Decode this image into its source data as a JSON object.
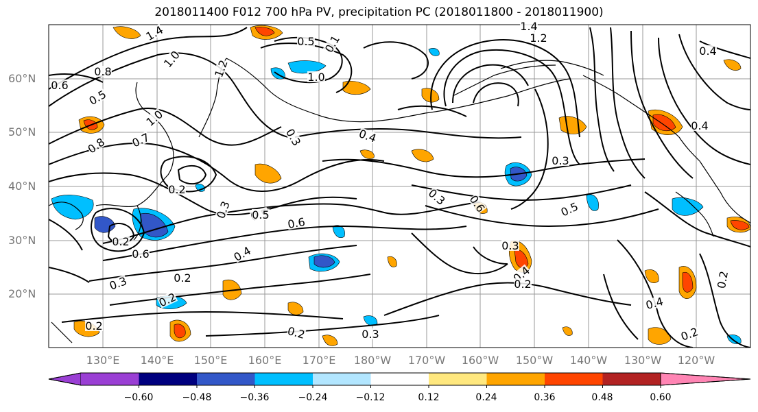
{
  "title": "2018011400 F012 700 hPa PV, precipitation PC (2018011800 - 2018011900)",
  "lat_labels": [
    "60°N",
    "50°N",
    "40°N",
    "30°N",
    "20°N"
  ],
  "lon_labels": [
    "130°E",
    "140°E",
    "150°E",
    "160°E",
    "170°E",
    "180°W",
    "170°W",
    "160°W",
    "150°W",
    "140°W",
    "130°W",
    "120°W"
  ],
  "colorbar": {
    "colors": [
      "#9a3fd4",
      "#00007f",
      "#3257c8",
      "#00bfff",
      "#b2e6ff",
      "#ffffff",
      "#ffe87f",
      "#ffa500",
      "#ff4500",
      "#b22222",
      "#ff85b4"
    ],
    "ticks": [
      "−0.60",
      "−0.48",
      "−0.36",
      "−0.24",
      "−0.12",
      "0.12",
      "0.24",
      "0.36",
      "0.48",
      "0.60"
    ]
  },
  "contour_labels": [
    {
      "text": "1.4"
    },
    {
      "text": "0.8"
    },
    {
      "text": "0.6"
    },
    {
      "text": "0.5"
    },
    {
      "text": "1.0"
    },
    {
      "text": "1.2"
    },
    {
      "text": "0.8"
    },
    {
      "text": "0.7"
    },
    {
      "text": "1.0"
    },
    {
      "text": "0.2"
    },
    {
      "text": "0.3"
    },
    {
      "text": "0.5"
    },
    {
      "text": "0.6"
    },
    {
      "text": "0.2"
    },
    {
      "text": "0.4"
    },
    {
      "text": "0.6"
    },
    {
      "text": "0.3"
    },
    {
      "text": "0.2"
    },
    {
      "text": "0.2"
    },
    {
      "text": "0.3"
    },
    {
      "text": "0.2"
    },
    {
      "text": "0.4"
    },
    {
      "text": "0.3"
    },
    {
      "text": "0.5"
    },
    {
      "text": "0.6"
    },
    {
      "text": "0.3"
    },
    {
      "text": "0.4"
    },
    {
      "text": "0.2"
    },
    {
      "text": "0.2"
    },
    {
      "text": "0.3"
    },
    {
      "text": "0.5"
    },
    {
      "text": "0.4"
    },
    {
      "text": "0.4"
    },
    {
      "text": "0.2"
    },
    {
      "text": "0.2"
    },
    {
      "text": "1.2"
    },
    {
      "text": "1.4"
    },
    {
      "text": "0.4"
    },
    {
      "text": "0.3"
    },
    {
      "text": "1.0"
    },
    {
      "text": "0.5"
    },
    {
      "text": "0.1"
    }
  ]
}
